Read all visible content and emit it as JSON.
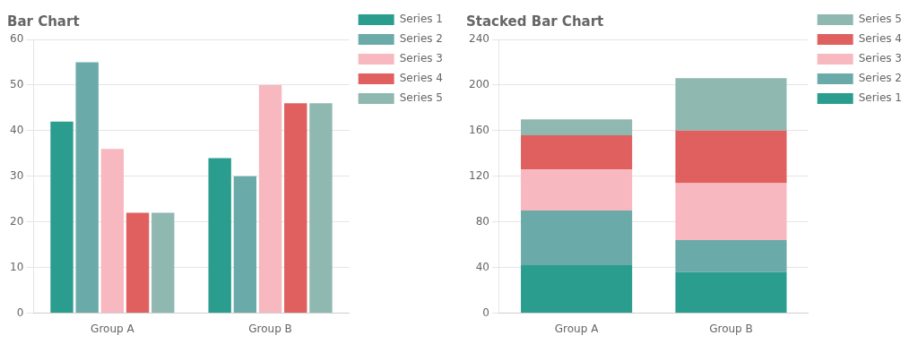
{
  "chart_data": [
    {
      "type": "bar",
      "title": "Bar Chart",
      "categories": [
        "Group A",
        "Group B"
      ],
      "series": [
        {
          "name": "Series 1",
          "color": "#2a9d8f",
          "values": [
            42,
            34
          ]
        },
        {
          "name": "Series 2",
          "color": "#6aabaa",
          "values": [
            55,
            30
          ]
        },
        {
          "name": "Series 3",
          "color": "#f8b8c0",
          "values": [
            36,
            50
          ]
        },
        {
          "name": "Series 4",
          "color": "#e06060",
          "values": [
            22,
            46
          ]
        },
        {
          "name": "Series 5",
          "color": "#8fb8b0",
          "values": [
            22,
            46
          ]
        }
      ],
      "ylim": [
        0,
        60
      ],
      "yticks": [
        0,
        10,
        20,
        30,
        40,
        50,
        60
      ],
      "grid": true,
      "legend": "right"
    },
    {
      "type": "bar",
      "title": "Stacked Bar Chart",
      "stacked": true,
      "categories": [
        "Group A",
        "Group B"
      ],
      "series": [
        {
          "name": "Series 1",
          "color": "#2a9d8f",
          "values": [
            42,
            36
          ]
        },
        {
          "name": "Series 2",
          "color": "#6aabaa",
          "values": [
            48,
            28
          ]
        },
        {
          "name": "Series 3",
          "color": "#f8b8c0",
          "values": [
            36,
            50
          ]
        },
        {
          "name": "Series 4",
          "color": "#e06060",
          "values": [
            30,
            46
          ]
        },
        {
          "name": "Series 5",
          "color": "#8fb8b0",
          "values": [
            14,
            46
          ]
        }
      ],
      "ylim": [
        0,
        240
      ],
      "yticks": [
        0,
        40,
        80,
        120,
        160,
        200,
        240
      ],
      "grid": true,
      "legend": "right"
    }
  ]
}
